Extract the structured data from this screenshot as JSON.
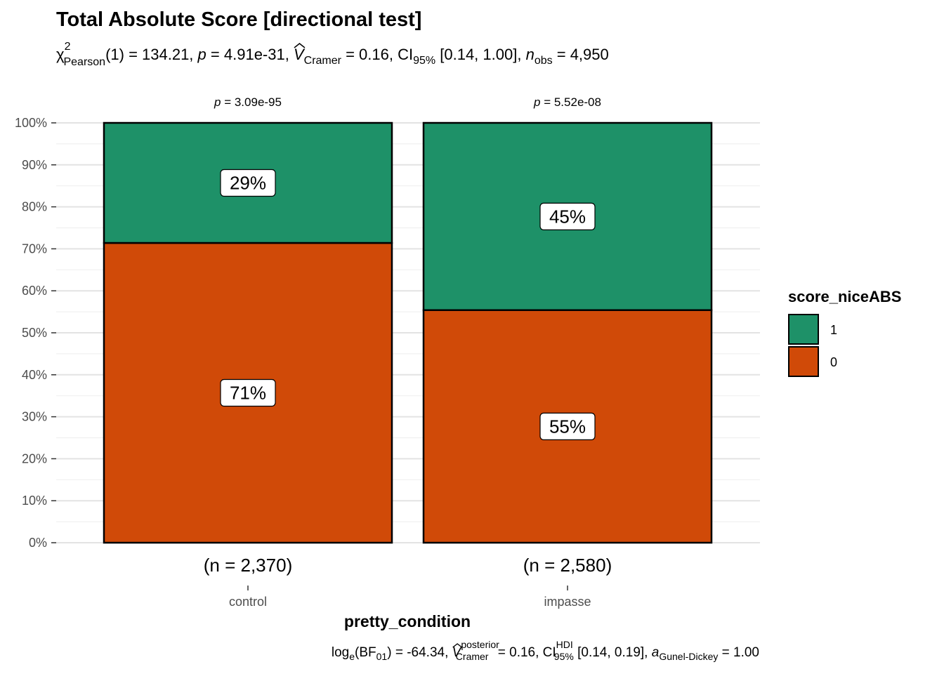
{
  "chart_data": {
    "type": "bar",
    "stacked": true,
    "percent": true,
    "title": "Total Absolute Score [directional test]",
    "subtitle": {
      "chi_symbol": "χ",
      "chi_sup": "2",
      "chi_sub": "Pearson",
      "stat": "(1) = 134.21, ",
      "p_sym": "p",
      "p_val": " = 4.91e-31, ",
      "v_sym": "V",
      "v_sub": "Cramer",
      "v_val": " = 0.16, CI",
      "ci_sub": "95%",
      "ci_val": " [0.14, 1.00], ",
      "n_sym": "n",
      "n_sub": "obs",
      "n_val": " = 4,950"
    },
    "categories": [
      "control",
      "impasse"
    ],
    "facet_p": [
      "= 3.09e-95",
      "= 5.52e-08"
    ],
    "p_symbol": "p",
    "n_labels": [
      "(n = 2,370)",
      "(n = 2,580)"
    ],
    "xlabel": "pretty_condition",
    "ylabel": "",
    "ylim": [
      0,
      100
    ],
    "yticks": [
      "0%",
      "10%",
      "20%",
      "30%",
      "40%",
      "50%",
      "60%",
      "70%",
      "80%",
      "90%",
      "100%"
    ],
    "series": [
      {
        "name": "0",
        "color": "#D04A08",
        "values": [
          71.4,
          55.4
        ],
        "labels": [
          "71%",
          "55%"
        ]
      },
      {
        "name": "1",
        "color": "#1E9168",
        "values": [
          28.6,
          44.6
        ],
        "labels": [
          "29%",
          "45%"
        ]
      }
    ],
    "legend": {
      "title": "score_niceABS",
      "position": "right",
      "entries": [
        {
          "label": "1",
          "color": "#1E9168"
        },
        {
          "label": "0",
          "color": "#D04A08"
        }
      ]
    },
    "grid": true,
    "caption": {
      "log": "log",
      "log_sub": "e",
      "bf": "(BF",
      "bf_sub": "01",
      "bf_val": ") = -64.34, ",
      "v_sym": "V",
      "v_sup": "posterior",
      "v_sub": "Cramer",
      "v_val": " = 0.16, CI",
      "ci_sup": "HDI",
      "ci_sub": "95%",
      "ci_val": " [0.14, 0.19], ",
      "a_sym": "a",
      "a_sub": "Gunel-Dickey",
      "a_val": " = 1.00"
    }
  }
}
